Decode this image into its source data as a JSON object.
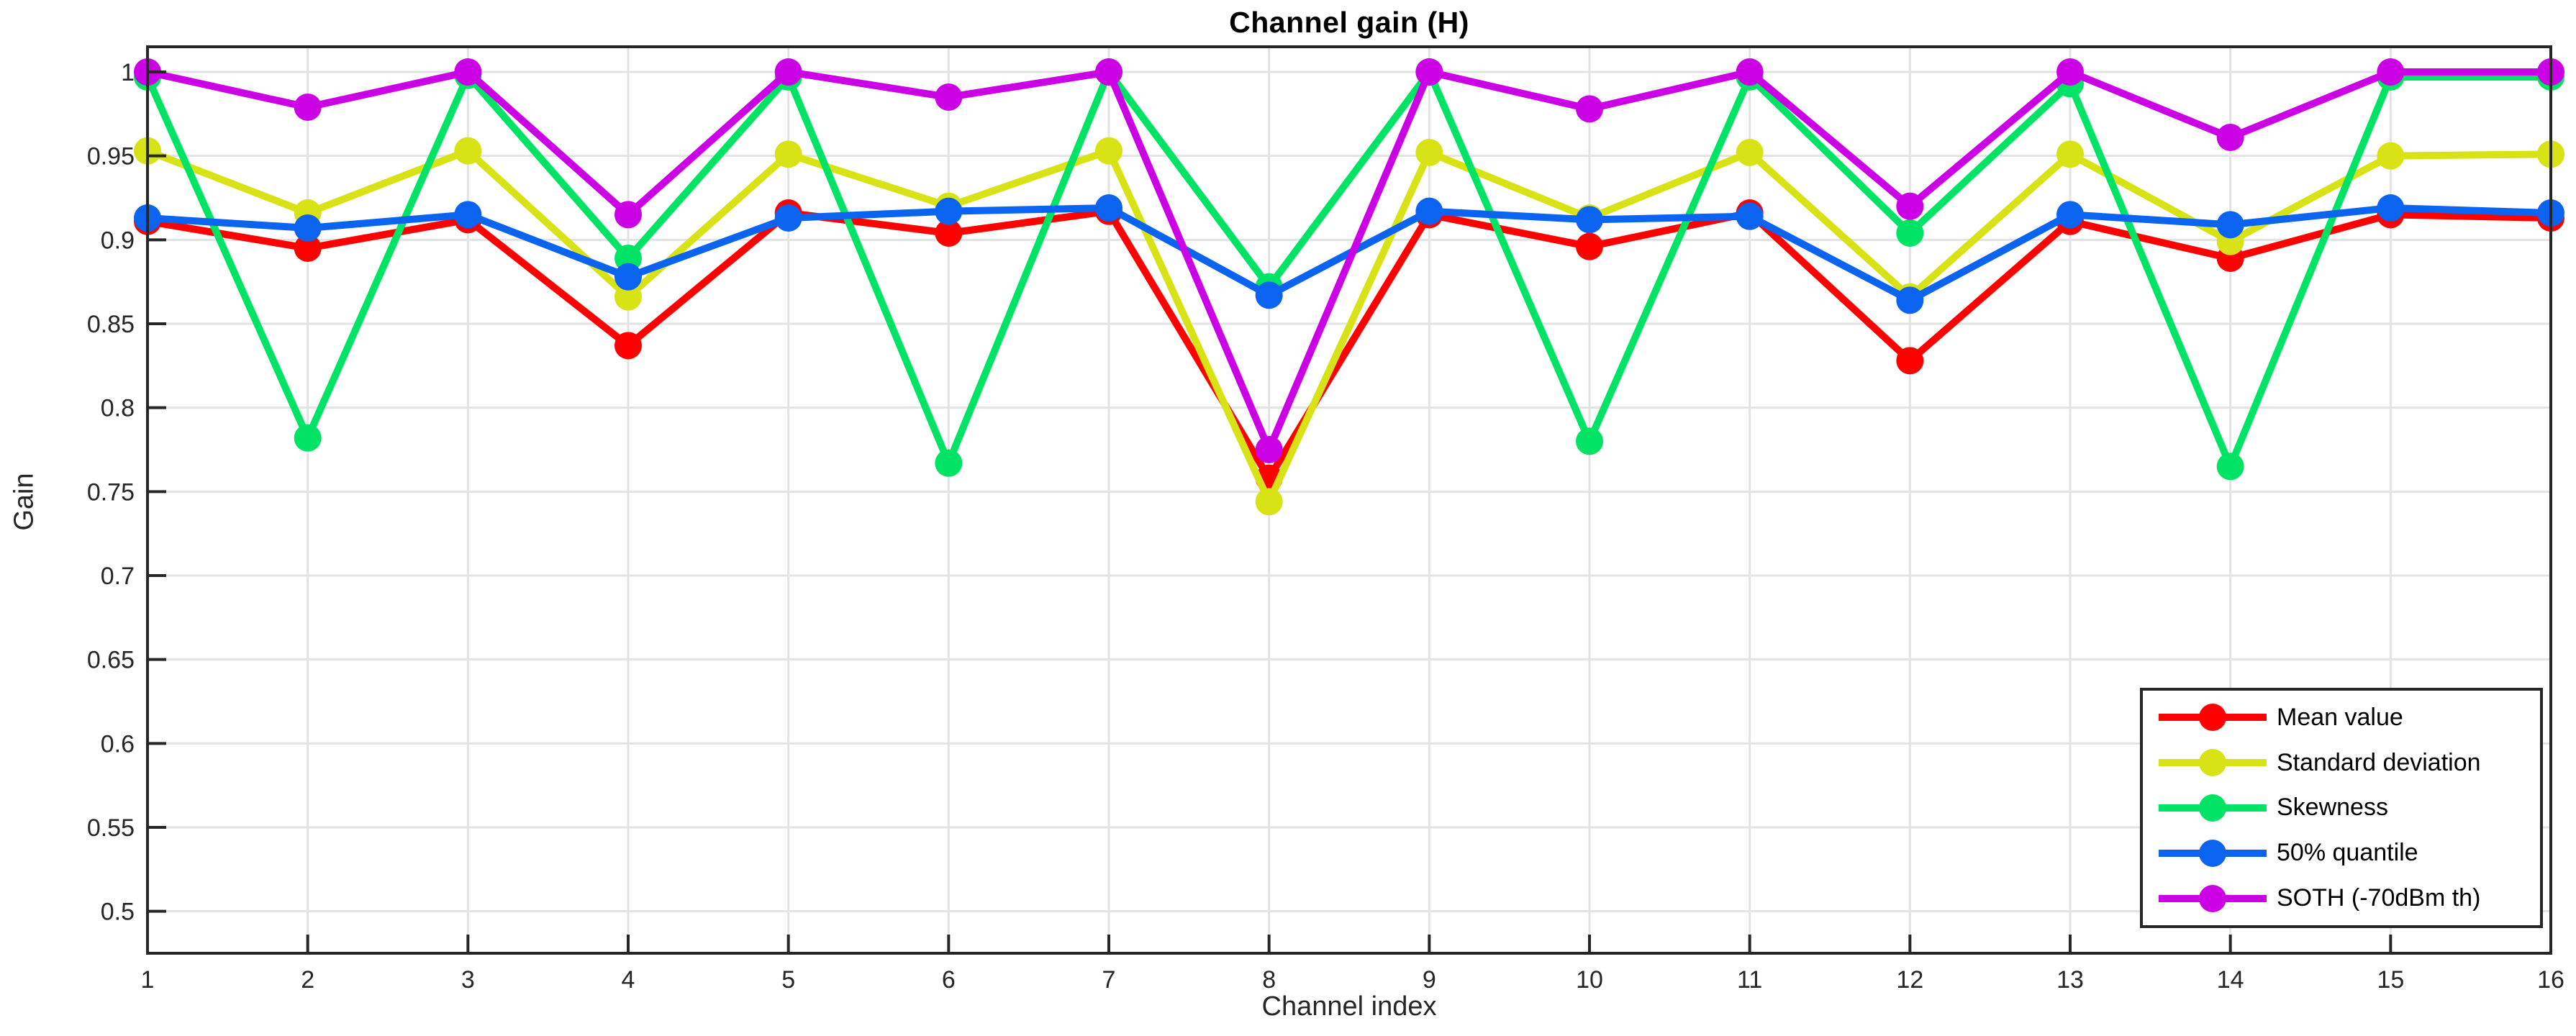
{
  "figure": {
    "background": "#ffffff"
  },
  "chart_data": {
    "type": "line",
    "title": "Channel gain (H)",
    "xlabel": "Channel index",
    "ylabel": "Gain",
    "x": [
      1,
      2,
      3,
      4,
      5,
      6,
      7,
      8,
      9,
      10,
      11,
      12,
      13,
      14,
      15,
      16
    ],
    "x_tick_labels": [
      "1",
      "2",
      "3",
      "4",
      "5",
      "6",
      "7",
      "8",
      "9",
      "10",
      "11",
      "12",
      "13",
      "14",
      "15",
      "16"
    ],
    "y_ticks": [
      0.5,
      0.55,
      0.6,
      0.65,
      0.7,
      0.75,
      0.8,
      0.85,
      0.9,
      0.95,
      1.0
    ],
    "y_tick_labels": [
      "0.5",
      "0.55",
      "0.6",
      "0.65",
      "0.7",
      "0.75",
      "0.8",
      "0.85",
      "0.9",
      "0.95",
      "1"
    ],
    "xlim": [
      1,
      16
    ],
    "ylim": [
      0.475,
      1.015
    ],
    "grid": true,
    "legend_position": "bottom-right",
    "series": [
      {
        "name": "Mean value",
        "color": "#FF0000",
        "values": [
          0.911,
          0.895,
          0.912,
          0.837,
          0.916,
          0.904,
          0.917,
          0.758,
          0.915,
          0.896,
          0.916,
          0.828,
          0.911,
          0.889,
          0.915,
          0.913
        ]
      },
      {
        "name": "Standard deviation",
        "color": "#D7E314",
        "values": [
          0.953,
          0.916,
          0.953,
          0.866,
          0.951,
          0.92,
          0.953,
          0.744,
          0.952,
          0.913,
          0.952,
          0.866,
          0.951,
          0.899,
          0.95,
          0.951
        ]
      },
      {
        "name": "Skewness",
        "color": "#00E364",
        "values": [
          0.997,
          0.782,
          0.998,
          0.889,
          0.997,
          0.767,
          1.0,
          0.872,
          1.0,
          0.78,
          0.997,
          0.904,
          0.993,
          0.765,
          0.997,
          0.997
        ]
      },
      {
        "name": "50% quantile",
        "color": "#0A64F0",
        "values": [
          0.913,
          0.907,
          0.915,
          0.878,
          0.913,
          0.917,
          0.919,
          0.867,
          0.917,
          0.912,
          0.914,
          0.864,
          0.915,
          0.909,
          0.919,
          0.916
        ]
      },
      {
        "name": "SOTH (-70dBm th)",
        "color": "#CC00E5",
        "values": [
          1.0,
          0.979,
          1.0,
          0.915,
          1.0,
          0.985,
          1.0,
          0.775,
          1.0,
          0.978,
          1.0,
          0.92,
          1.0,
          0.961,
          1.0,
          1.0
        ]
      }
    ],
    "style": {
      "grid_color": "#E3E3E3",
      "axis_color": "#262626",
      "tick_label_color": "#262626",
      "line_width": 10,
      "marker_radius": 19,
      "tick_font_size": 34
    }
  }
}
